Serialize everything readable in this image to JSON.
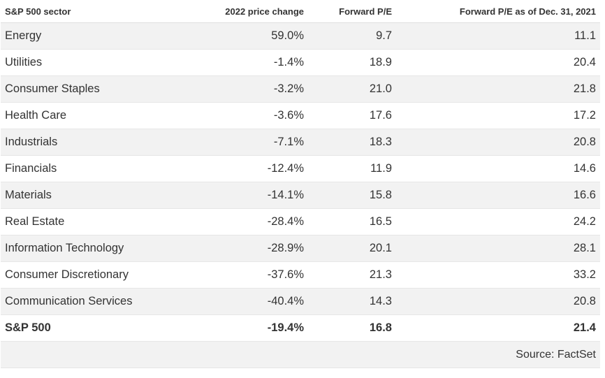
{
  "table": {
    "headers": {
      "sector": "S&P 500 sector",
      "price_change": "2022 price change",
      "forward_pe": "Forward P/E",
      "forward_pe_2021": "Forward P/E as of Dec. 31, 2021"
    },
    "rows": [
      {
        "sector": "Energy",
        "price_change": "59.0%",
        "forward_pe": "9.7",
        "forward_pe_2021": "11.1"
      },
      {
        "sector": "Utilities",
        "price_change": "-1.4%",
        "forward_pe": "18.9",
        "forward_pe_2021": "20.4"
      },
      {
        "sector": "Consumer Staples",
        "price_change": "-3.2%",
        "forward_pe": "21.0",
        "forward_pe_2021": "21.8"
      },
      {
        "sector": "Health Care",
        "price_change": "-3.6%",
        "forward_pe": "17.6",
        "forward_pe_2021": "17.2"
      },
      {
        "sector": "Industrials",
        "price_change": "-7.1%",
        "forward_pe": "18.3",
        "forward_pe_2021": "20.8"
      },
      {
        "sector": "Financials",
        "price_change": "-12.4%",
        "forward_pe": "11.9",
        "forward_pe_2021": "14.6"
      },
      {
        "sector": "Materials",
        "price_change": "-14.1%",
        "forward_pe": "15.8",
        "forward_pe_2021": "16.6"
      },
      {
        "sector": "Real Estate",
        "price_change": "-28.4%",
        "forward_pe": "16.5",
        "forward_pe_2021": "24.2"
      },
      {
        "sector": "Information Technology",
        "price_change": "-28.9%",
        "forward_pe": "20.1",
        "forward_pe_2021": "28.1"
      },
      {
        "sector": "Consumer Discretionary",
        "price_change": "-37.6%",
        "forward_pe": "21.3",
        "forward_pe_2021": "33.2"
      },
      {
        "sector": "Communication Services",
        "price_change": "-40.4%",
        "forward_pe": "14.3",
        "forward_pe_2021": "20.8"
      }
    ],
    "total": {
      "sector": "S&P 500",
      "price_change": "-19.4%",
      "forward_pe": "16.8",
      "forward_pe_2021": "21.4"
    },
    "source": "Source: FactSet"
  }
}
